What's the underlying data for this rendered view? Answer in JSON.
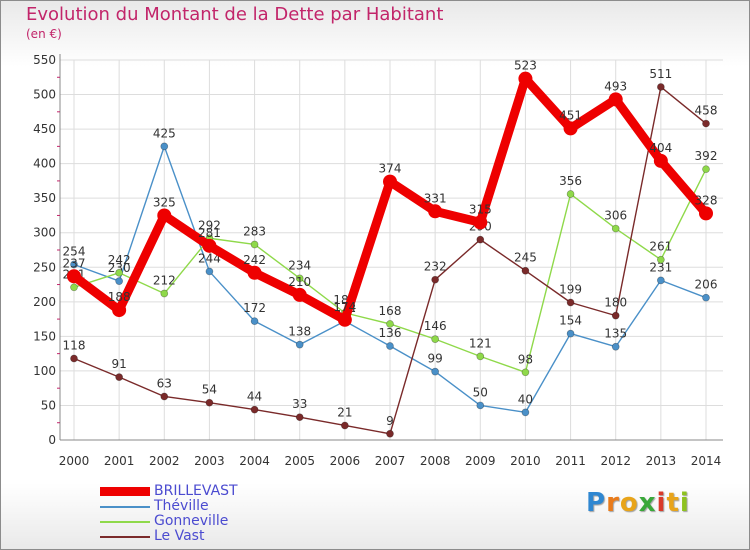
{
  "title": "Evolution du Montant de la Dette par Habitant",
  "unit": "(en €)",
  "logo": {
    "letters": [
      "P",
      "r",
      "o",
      "x",
      "i",
      "t",
      "i"
    ],
    "colors": [
      "#2f87d1",
      "#e97b1a",
      "#e8a41a",
      "#3aa83a",
      "#d93a2a",
      "#e8a41a",
      "#8ec21f"
    ]
  },
  "chart_data": {
    "type": "line",
    "x": [
      "2000",
      "2001",
      "2002",
      "2003",
      "2004",
      "2005",
      "2006",
      "2007",
      "2008",
      "2009",
      "2010",
      "2011",
      "2012",
      "2013",
      "2014"
    ],
    "ylim": [
      0,
      550
    ],
    "yticks": [
      "0",
      "50",
      "100",
      "150",
      "200",
      "250",
      "300",
      "350",
      "400",
      "450",
      "500",
      "550"
    ],
    "grid": true,
    "legend_position": "bottom-left",
    "series": [
      {
        "name": "BRILLEVAST",
        "color": "#ee0000",
        "emphasis": true,
        "values": [
          237,
          188,
          325,
          281,
          242,
          210,
          174,
          374,
          331,
          315,
          523,
          451,
          493,
          404,
          328
        ],
        "labels": [
          "237",
          "188",
          "325",
          "281",
          "242",
          "210",
          "174",
          "374",
          "331",
          "315",
          "523",
          "451",
          "493",
          "404",
          "328"
        ]
      },
      {
        "name": "Théville",
        "color": "#4a90c8",
        "values": [
          254,
          230,
          425,
          244,
          172,
          138,
          172,
          136,
          99,
          50,
          40,
          154,
          135,
          231,
          206
        ],
        "labels": [
          "254",
          "230",
          "425",
          "244",
          "172",
          "138",
          "172",
          "136",
          "99",
          "50",
          "40",
          "154",
          "135",
          "231",
          "206"
        ]
      },
      {
        "name": "Gonneville",
        "color": "#8fd94a",
        "values": [
          221,
          242,
          212,
          292,
          283,
          234,
          184,
          168,
          146,
          121,
          98,
          356,
          306,
          261,
          392
        ],
        "labels": [
          "221",
          "242",
          "212",
          "292",
          "283",
          "234",
          "184",
          "168",
          "146",
          "121",
          "98",
          "356",
          "306",
          "261",
          "392"
        ]
      },
      {
        "name": "Le Vast",
        "color": "#7a2a2a",
        "values": [
          118,
          91,
          63,
          54,
          44,
          33,
          21,
          9,
          232,
          290,
          245,
          199,
          180,
          511,
          458
        ],
        "labels": [
          "118",
          "91",
          "63",
          "54",
          "44",
          "33",
          "21",
          "9",
          "232",
          "290",
          "245",
          "199",
          "180",
          "511",
          "458"
        ]
      }
    ]
  }
}
